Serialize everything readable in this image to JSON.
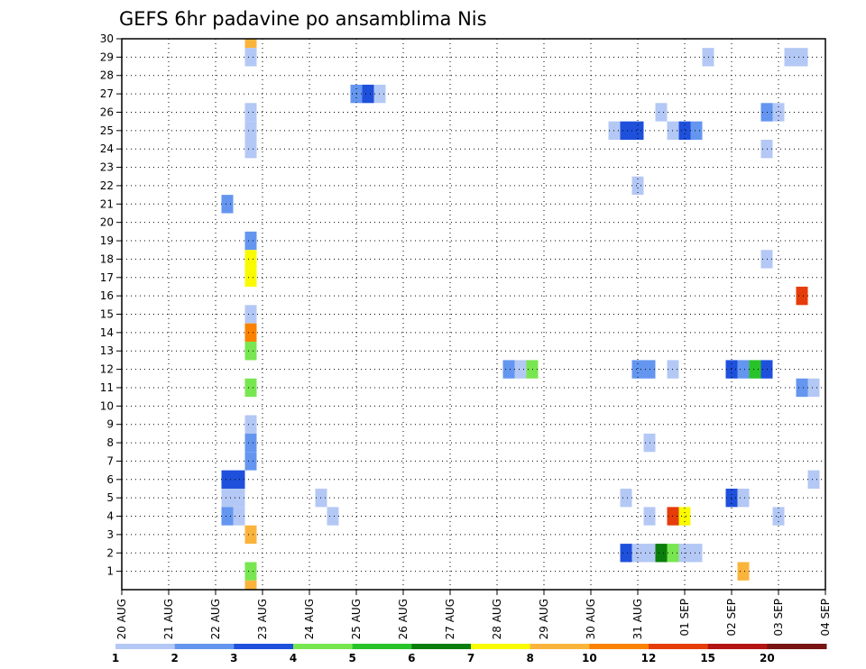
{
  "chart_data": {
    "type": "heatmap",
    "title": "GEFS 6hr padavine po ansamblima Nis",
    "xlabel": "",
    "ylabel": "",
    "x_tick_labels": [
      "20 AUG",
      "21 AUG",
      "22 AUG",
      "23 AUG",
      "24 AUG",
      "25 AUG",
      "26 AUG",
      "27 AUG",
      "28 AUG",
      "29 AUG",
      "30 AUG",
      "31 AUG",
      "01 SEP",
      "02 SEP",
      "03 SEP",
      "04 SEP"
    ],
    "y_tick_labels": [
      "1",
      "2",
      "3",
      "4",
      "5",
      "6",
      "7",
      "8",
      "9",
      "10",
      "11",
      "12",
      "13",
      "14",
      "15",
      "16",
      "17",
      "18",
      "19",
      "20",
      "21",
      "22",
      "23",
      "24",
      "25",
      "26",
      "27",
      "28",
      "29",
      "30"
    ],
    "x_range_days": [
      0,
      15
    ],
    "y_range": [
      0,
      30
    ],
    "grid": true,
    "colorbar": {
      "labels": [
        "1",
        "2",
        "3",
        "4",
        "5",
        "6",
        "7",
        "8",
        "10",
        "12",
        "15",
        "20"
      ],
      "colors": [
        "#b4c8f5",
        "#6496f0",
        "#1e50dc",
        "#78e650",
        "#28c328",
        "#0a7d0a",
        "#fafa00",
        "#fab43c",
        "#fa8200",
        "#e63c0a",
        "#b41414",
        "#781414"
      ]
    },
    "points": [
      {
        "day": 2.75,
        "member": 30,
        "level": 8
      },
      {
        "day": 2.75,
        "member": 29,
        "level": 1
      },
      {
        "day": 2.75,
        "member": 26,
        "level": 1
      },
      {
        "day": 2.75,
        "member": 25,
        "level": 1
      },
      {
        "day": 2.75,
        "member": 24,
        "level": 1
      },
      {
        "day": 2.25,
        "member": 21,
        "level": 2
      },
      {
        "day": 2.75,
        "member": 19,
        "level": 2
      },
      {
        "day": 2.75,
        "member": 18,
        "level": 7
      },
      {
        "day": 2.75,
        "member": 17,
        "level": 7
      },
      {
        "day": 2.75,
        "member": 15,
        "level": 1
      },
      {
        "day": 2.75,
        "member": 14,
        "level": 9
      },
      {
        "day": 2.75,
        "member": 13,
        "level": 4
      },
      {
        "day": 2.75,
        "member": 11,
        "level": 4
      },
      {
        "day": 2.75,
        "member": 9,
        "level": 1
      },
      {
        "day": 2.75,
        "member": 8,
        "level": 2
      },
      {
        "day": 2.75,
        "member": 7,
        "level": 2
      },
      {
        "day": 2.25,
        "member": 6,
        "level": 3
      },
      {
        "day": 2.5,
        "member": 6,
        "level": 3
      },
      {
        "day": 2.25,
        "member": 5,
        "level": 1
      },
      {
        "day": 2.5,
        "member": 5,
        "level": 1
      },
      {
        "day": 2.25,
        "member": 4,
        "level": 2
      },
      {
        "day": 2.5,
        "member": 4,
        "level": 1
      },
      {
        "day": 2.75,
        "member": 3,
        "level": 8
      },
      {
        "day": 2.75,
        "member": 1,
        "level": 4
      },
      {
        "day": 2.75,
        "member": 0,
        "level": 8
      },
      {
        "day": 4.25,
        "member": 5,
        "level": 1
      },
      {
        "day": 4.5,
        "member": 4,
        "level": 1
      },
      {
        "day": 5.0,
        "member": 27,
        "level": 2
      },
      {
        "day": 5.25,
        "member": 27,
        "level": 3
      },
      {
        "day": 5.5,
        "member": 27,
        "level": 1
      },
      {
        "day": 8.25,
        "member": 12,
        "level": 2
      },
      {
        "day": 8.5,
        "member": 12,
        "level": 1
      },
      {
        "day": 8.75,
        "member": 12,
        "level": 4
      },
      {
        "day": 10.5,
        "member": 25,
        "level": 1
      },
      {
        "day": 10.75,
        "member": 25,
        "level": 3
      },
      {
        "day": 11.0,
        "member": 25,
        "level": 3
      },
      {
        "day": 10.75,
        "member": 5,
        "level": 1
      },
      {
        "day": 10.75,
        "member": 2,
        "level": 3
      },
      {
        "day": 11.0,
        "member": 2,
        "level": 1
      },
      {
        "day": 11.25,
        "member": 2,
        "level": 1
      },
      {
        "day": 11.5,
        "member": 2,
        "level": 6
      },
      {
        "day": 11.75,
        "member": 2,
        "level": 4
      },
      {
        "day": 12.0,
        "member": 2,
        "level": 1
      },
      {
        "day": 12.25,
        "member": 2,
        "level": 1
      },
      {
        "day": 11.0,
        "member": 22,
        "level": 1
      },
      {
        "day": 11.0,
        "member": 12,
        "level": 2
      },
      {
        "day": 11.25,
        "member": 12,
        "level": 2
      },
      {
        "day": 11.75,
        "member": 12,
        "level": 1
      },
      {
        "day": 11.25,
        "member": 8,
        "level": 1
      },
      {
        "day": 11.25,
        "member": 4,
        "level": 1
      },
      {
        "day": 11.75,
        "member": 4,
        "level": 10
      },
      {
        "day": 12.0,
        "member": 4,
        "level": 7
      },
      {
        "day": 11.5,
        "member": 26,
        "level": 1
      },
      {
        "day": 11.75,
        "member": 25,
        "level": 1
      },
      {
        "day": 12.0,
        "member": 25,
        "level": 3
      },
      {
        "day": 12.25,
        "member": 25,
        "level": 2
      },
      {
        "day": 12.5,
        "member": 29,
        "level": 1
      },
      {
        "day": 13.0,
        "member": 12,
        "level": 3
      },
      {
        "day": 13.25,
        "member": 12,
        "level": 2
      },
      {
        "day": 13.5,
        "member": 12,
        "level": 5
      },
      {
        "day": 13.75,
        "member": 12,
        "level": 3
      },
      {
        "day": 13.0,
        "member": 5,
        "level": 3
      },
      {
        "day": 13.25,
        "member": 5,
        "level": 1
      },
      {
        "day": 13.25,
        "member": 1,
        "level": 8
      },
      {
        "day": 13.75,
        "member": 26,
        "level": 2
      },
      {
        "day": 14.0,
        "member": 26,
        "level": 1
      },
      {
        "day": 13.75,
        "member": 24,
        "level": 1
      },
      {
        "day": 13.75,
        "member": 18,
        "level": 1
      },
      {
        "day": 14.0,
        "member": 4,
        "level": 1
      },
      {
        "day": 14.25,
        "member": 29,
        "level": 1
      },
      {
        "day": 14.5,
        "member": 29,
        "level": 1
      },
      {
        "day": 14.5,
        "member": 16,
        "level": 10
      },
      {
        "day": 14.5,
        "member": 11,
        "level": 2
      },
      {
        "day": 14.75,
        "member": 11,
        "level": 1
      },
      {
        "day": 14.75,
        "member": 6,
        "level": 1
      }
    ]
  }
}
